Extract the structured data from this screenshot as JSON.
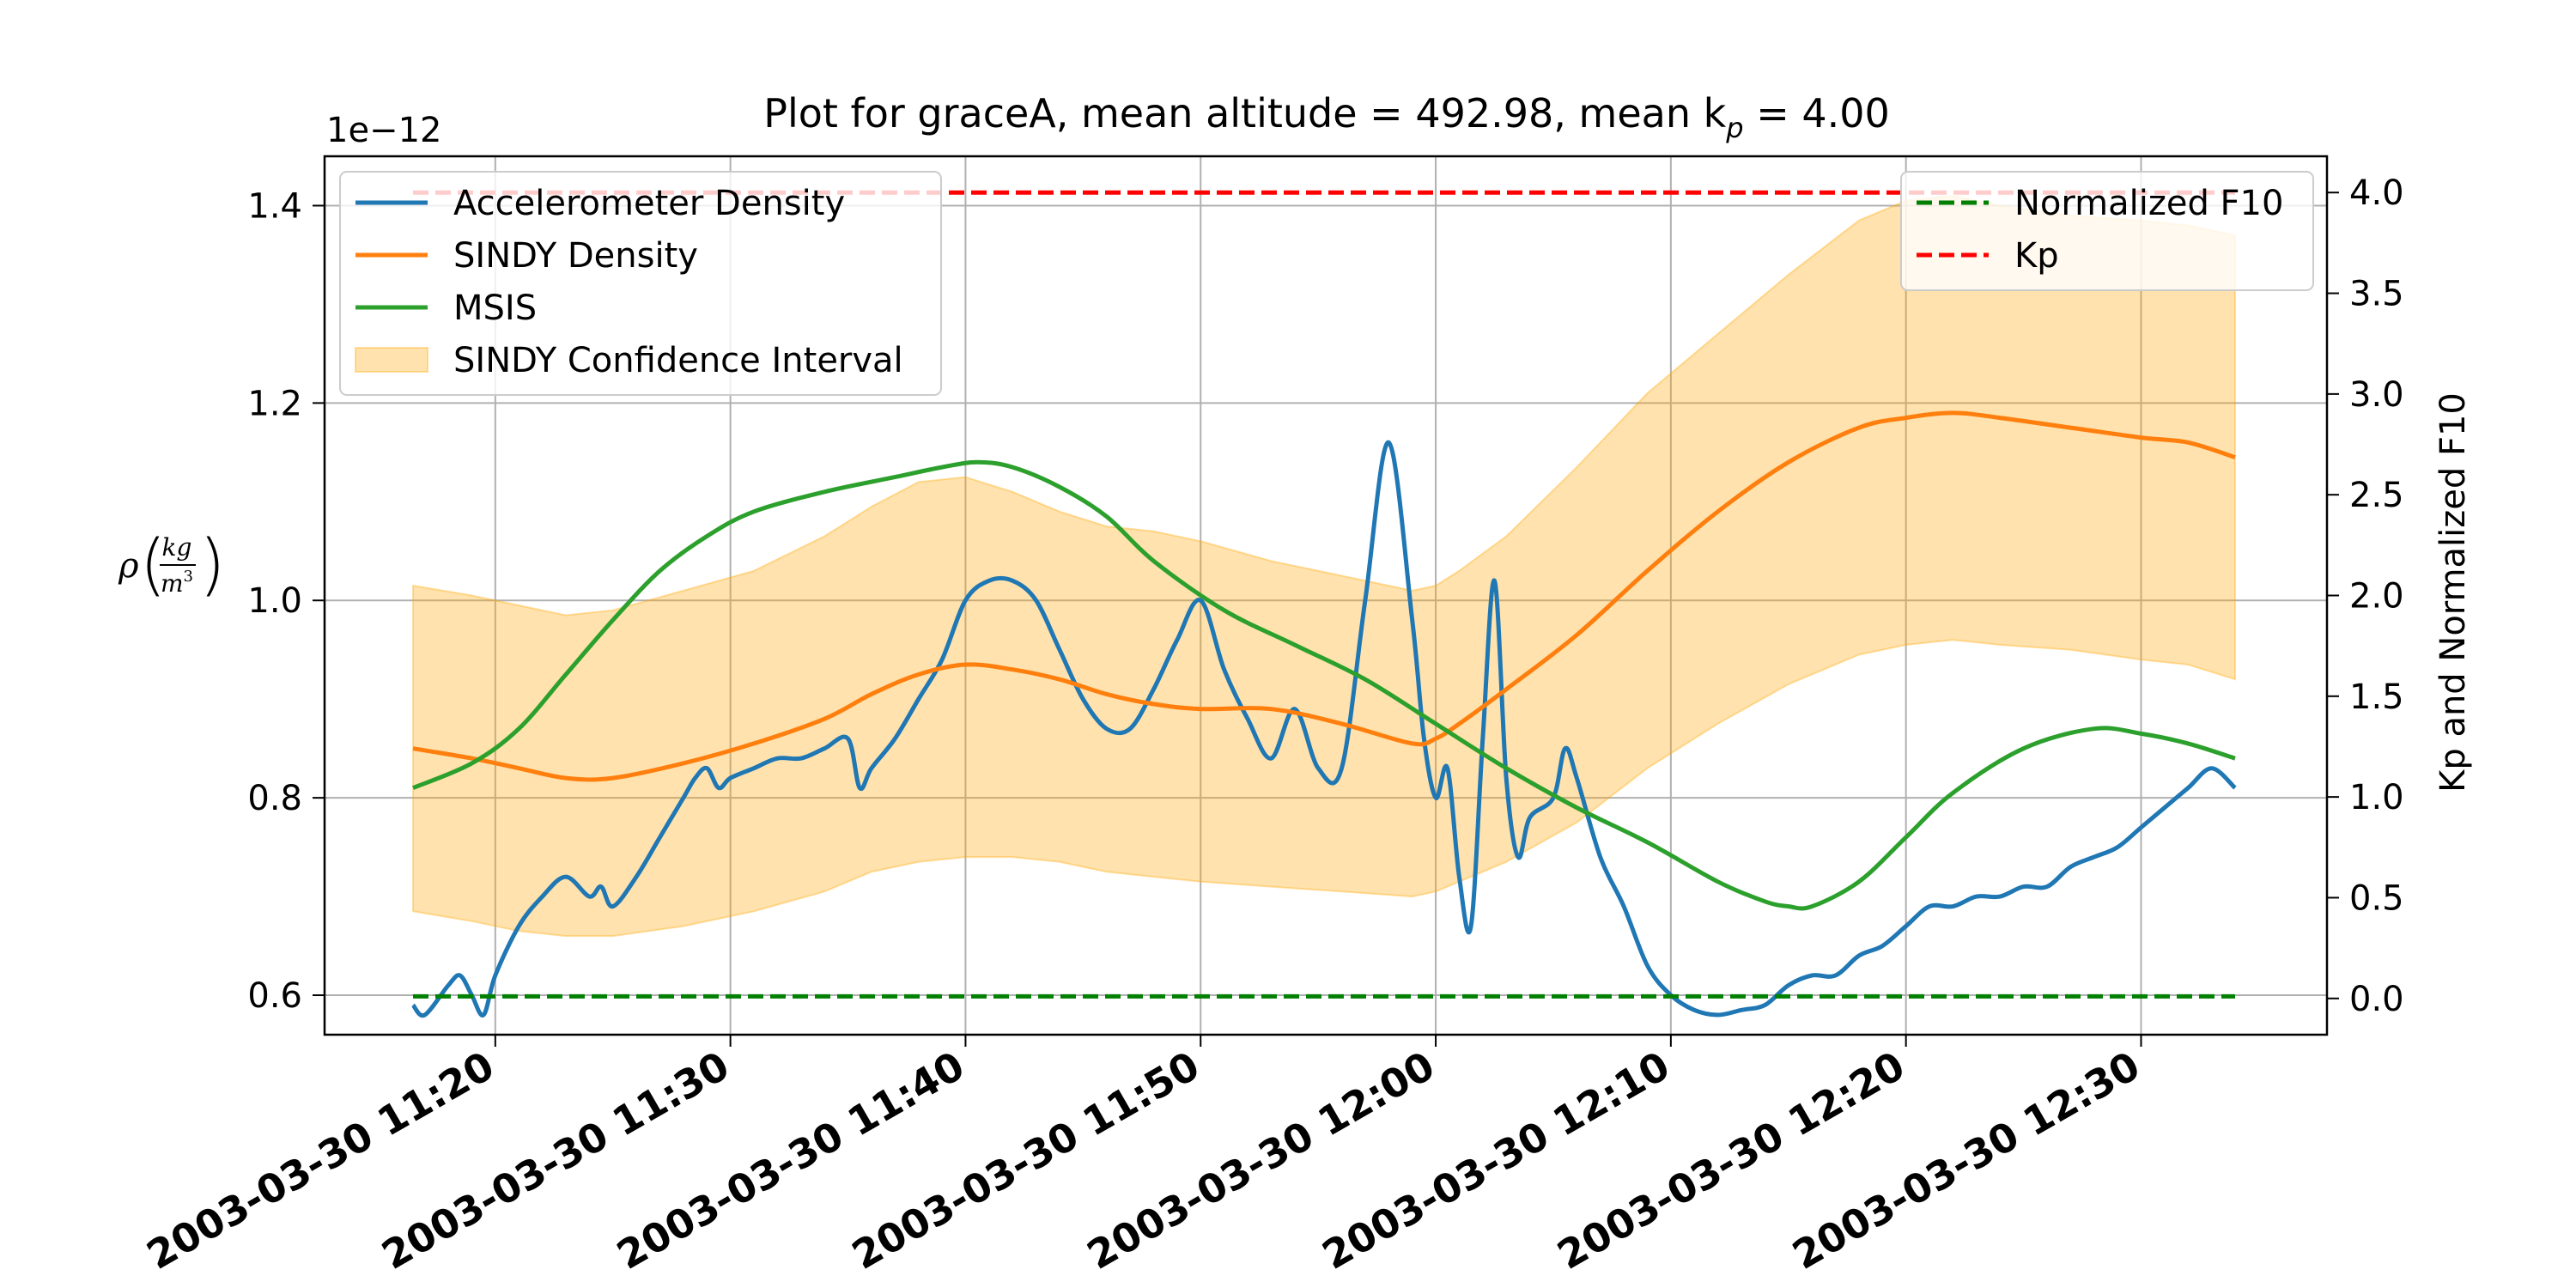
{
  "chart_data": {
    "type": "line",
    "title": "Plot for graceA, mean altitude = 492.98, mean k",
    "title_sub": "p",
    "title_suffix": " = 4.00",
    "ylabel": "ρ(kg/m³)",
    "ylabel_rho": "ρ",
    "ylabel_num": "kg",
    "ylabel_den": "m",
    "ylabel_exp": "3",
    "y_offset_label": "1e−12",
    "y2label": "Kp and Normalized F10",
    "grid": true,
    "x_range": [
      "2003-03-30 11:16:30",
      "2003-03-30 12:34:00"
    ],
    "ylim": [
      0.56,
      1.45
    ],
    "y2lim": [
      -0.18,
      4.18
    ],
    "x_tick_labels": [
      "2003-03-30 11:20",
      "2003-03-30 11:30",
      "2003-03-30 11:40",
      "2003-03-30 11:50",
      "2003-03-30 12:00",
      "2003-03-30 12:10",
      "2003-03-30 12:20",
      "2003-03-30 12:30"
    ],
    "y_ticks": [
      0.6,
      0.8,
      1.0,
      1.2,
      1.4
    ],
    "y_tick_labels": [
      "0.6",
      "0.8",
      "1.0",
      "1.2",
      "1.4"
    ],
    "y2_ticks": [
      0.0,
      0.5,
      1.0,
      1.5,
      2.0,
      2.5,
      3.0,
      3.5,
      4.0
    ],
    "y2_tick_labels": [
      "0.0",
      "0.5",
      "1.0",
      "1.5",
      "2.0",
      "2.5",
      "3.0",
      "3.5",
      "4.0"
    ],
    "legend_left": {
      "placement": "upper-left",
      "entries": [
        "Accelerometer Density",
        "SINDY Density",
        "MSIS",
        "SINDY Confidence Interval"
      ]
    },
    "legend_right": {
      "placement": "upper-right",
      "entries": [
        "Normalized F10",
        "Kp"
      ]
    },
    "colors": {
      "accelerometer": "#1f77b4",
      "sindy": "#ff7f0e",
      "msis": "#2ca02c",
      "ci": "#ffa500",
      "f10": "#008000",
      "kp": "#ff0000"
    },
    "series": [
      {
        "name": "Accelerometer Density",
        "axis": "left",
        "x": [
          "11:16:30",
          "11:17:00",
          "11:18:00",
          "11:18:30",
          "11:19:00",
          "11:19:30",
          "11:20:00",
          "11:21:00",
          "11:22:00",
          "11:23:00",
          "11:24:00",
          "11:24:30",
          "11:25:00",
          "11:26:00",
          "11:27:00",
          "11:28:00",
          "11:28:30",
          "11:29:00",
          "11:29:30",
          "11:30:00",
          "11:31:00",
          "11:32:00",
          "11:33:00",
          "11:34:00",
          "11:35:00",
          "11:35:30",
          "11:36:00",
          "11:37:00",
          "11:38:00",
          "11:39:00",
          "11:40:00",
          "11:41:00",
          "11:42:00",
          "11:43:00",
          "11:44:00",
          "11:45:00",
          "11:46:00",
          "11:47:00",
          "11:48:00",
          "11:49:00",
          "11:50:00",
          "11:51:00",
          "11:52:00",
          "11:53:00",
          "11:54:00",
          "11:55:00",
          "11:56:00",
          "11:57:00",
          "11:58:00",
          "11:59:00",
          "11:59:30",
          "12:00:00",
          "12:00:30",
          "12:01:00",
          "12:01:30",
          "12:02:00",
          "12:02:30",
          "12:03:00",
          "12:03:30",
          "12:04:00",
          "12:05:00",
          "12:05:30",
          "12:06:00",
          "12:07:00",
          "12:08:00",
          "12:09:00",
          "12:10:00",
          "12:11:00",
          "12:12:00",
          "12:13:00",
          "12:14:00",
          "12:15:00",
          "12:16:00",
          "12:17:00",
          "12:18:00",
          "12:19:00",
          "12:20:00",
          "12:21:00",
          "12:22:00",
          "12:23:00",
          "12:24:00",
          "12:25:00",
          "12:26:00",
          "12:27:00",
          "12:28:00",
          "12:29:00",
          "12:30:00",
          "12:31:00",
          "12:32:00",
          "12:33:00",
          "12:34:00"
        ],
        "values": [
          0.59,
          0.58,
          0.61,
          0.62,
          0.6,
          0.58,
          0.62,
          0.67,
          0.7,
          0.72,
          0.7,
          0.71,
          0.69,
          0.72,
          0.76,
          0.8,
          0.82,
          0.83,
          0.81,
          0.82,
          0.83,
          0.84,
          0.84,
          0.85,
          0.86,
          0.81,
          0.83,
          0.86,
          0.9,
          0.94,
          1.0,
          1.02,
          1.02,
          1.0,
          0.95,
          0.9,
          0.87,
          0.87,
          0.91,
          0.96,
          1.0,
          0.93,
          0.88,
          0.84,
          0.89,
          0.83,
          0.83,
          1.0,
          1.16,
          0.98,
          0.86,
          0.8,
          0.83,
          0.72,
          0.67,
          0.86,
          1.02,
          0.82,
          0.74,
          0.78,
          0.8,
          0.85,
          0.82,
          0.74,
          0.69,
          0.63,
          0.6,
          0.585,
          0.58,
          0.585,
          0.59,
          0.61,
          0.62,
          0.62,
          0.64,
          0.65,
          0.67,
          0.69,
          0.69,
          0.7,
          0.7,
          0.71,
          0.71,
          0.73,
          0.74,
          0.75,
          0.77,
          0.79,
          0.81,
          0.83,
          0.81
        ]
      },
      {
        "name": "SINDY Density",
        "axis": "left",
        "x": [
          "11:16:30",
          "11:19:00",
          "11:21:00",
          "11:23:00",
          "11:25:00",
          "11:28:00",
          "11:31:00",
          "11:34:00",
          "11:36:00",
          "11:38:00",
          "11:40:00",
          "11:42:00",
          "11:44:00",
          "11:46:00",
          "11:48:00",
          "11:50:00",
          "11:53:00",
          "11:56:00",
          "11:59:00",
          "12:00:00",
          "12:01:00",
          "12:03:00",
          "12:06:00",
          "12:09:00",
          "12:12:00",
          "12:15:00",
          "12:18:00",
          "12:20:00",
          "12:22:00",
          "12:24:00",
          "12:27:00",
          "12:30:00",
          "12:32:00",
          "12:34:00"
        ],
        "values": [
          0.85,
          0.84,
          0.83,
          0.82,
          0.82,
          0.835,
          0.855,
          0.88,
          0.905,
          0.925,
          0.935,
          0.93,
          0.92,
          0.905,
          0.895,
          0.89,
          0.89,
          0.875,
          0.855,
          0.86,
          0.875,
          0.91,
          0.965,
          1.03,
          1.09,
          1.14,
          1.175,
          1.185,
          1.19,
          1.185,
          1.175,
          1.165,
          1.16,
          1.145
        ]
      },
      {
        "name": "MSIS",
        "axis": "left",
        "x": [
          "11:16:30",
          "11:19:00",
          "11:21:00",
          "11:23:00",
          "11:25:00",
          "11:27:00",
          "11:29:00",
          "11:31:00",
          "11:34:00",
          "11:37:00",
          "11:39:00",
          "11:40:30",
          "11:42:00",
          "11:44:00",
          "11:46:00",
          "11:48:00",
          "11:51:00",
          "11:54:00",
          "11:57:00",
          "12:00:00",
          "12:03:00",
          "12:06:00",
          "12:09:00",
          "12:12:00",
          "12:14:00",
          "12:15:00",
          "12:16:00",
          "12:18:00",
          "12:20:00",
          "12:22:00",
          "12:25:00",
          "12:28:00",
          "12:30:00",
          "12:32:00",
          "12:34:00"
        ],
        "values": [
          0.81,
          0.835,
          0.87,
          0.925,
          0.98,
          1.03,
          1.065,
          1.09,
          1.11,
          1.125,
          1.135,
          1.14,
          1.135,
          1.115,
          1.085,
          1.04,
          0.99,
          0.955,
          0.92,
          0.875,
          0.83,
          0.79,
          0.755,
          0.715,
          0.695,
          0.69,
          0.69,
          0.715,
          0.76,
          0.805,
          0.85,
          0.87,
          0.865,
          0.855,
          0.84
        ]
      },
      {
        "name": "SINDY Confidence Interval",
        "axis": "left",
        "x": [
          "11:16:30",
          "11:19:00",
          "11:21:00",
          "11:23:00",
          "11:25:00",
          "11:28:00",
          "11:31:00",
          "11:34:00",
          "11:36:00",
          "11:38:00",
          "11:40:00",
          "11:42:00",
          "11:44:00",
          "11:46:00",
          "11:48:00",
          "11:50:00",
          "11:53:00",
          "11:56:00",
          "11:59:00",
          "12:00:00",
          "12:01:00",
          "12:03:00",
          "12:06:00",
          "12:09:00",
          "12:12:00",
          "12:15:00",
          "12:18:00",
          "12:20:00",
          "12:22:00",
          "12:24:00",
          "12:27:00",
          "12:30:00",
          "12:32:00",
          "12:34:00"
        ],
        "lower": [
          0.685,
          0.675,
          0.665,
          0.66,
          0.66,
          0.67,
          0.685,
          0.705,
          0.725,
          0.735,
          0.74,
          0.74,
          0.735,
          0.725,
          0.72,
          0.715,
          0.71,
          0.705,
          0.7,
          0.705,
          0.715,
          0.735,
          0.775,
          0.83,
          0.875,
          0.915,
          0.945,
          0.955,
          0.96,
          0.955,
          0.95,
          0.94,
          0.935,
          0.92
        ],
        "upper": [
          1.015,
          1.005,
          0.995,
          0.985,
          0.99,
          1.01,
          1.03,
          1.065,
          1.095,
          1.12,
          1.125,
          1.11,
          1.09,
          1.075,
          1.07,
          1.06,
          1.04,
          1.025,
          1.01,
          1.015,
          1.03,
          1.065,
          1.135,
          1.21,
          1.27,
          1.33,
          1.385,
          1.405,
          1.41,
          1.4,
          1.39,
          1.385,
          1.38,
          1.37
        ]
      },
      {
        "name": "Normalized F10",
        "axis": "right",
        "x": [
          "11:16:30",
          "12:34:00"
        ],
        "values": [
          0.01,
          0.01
        ]
      },
      {
        "name": "Kp",
        "axis": "right",
        "x": [
          "11:16:30",
          "12:34:00"
        ],
        "values": [
          4.0,
          4.0
        ]
      }
    ]
  }
}
